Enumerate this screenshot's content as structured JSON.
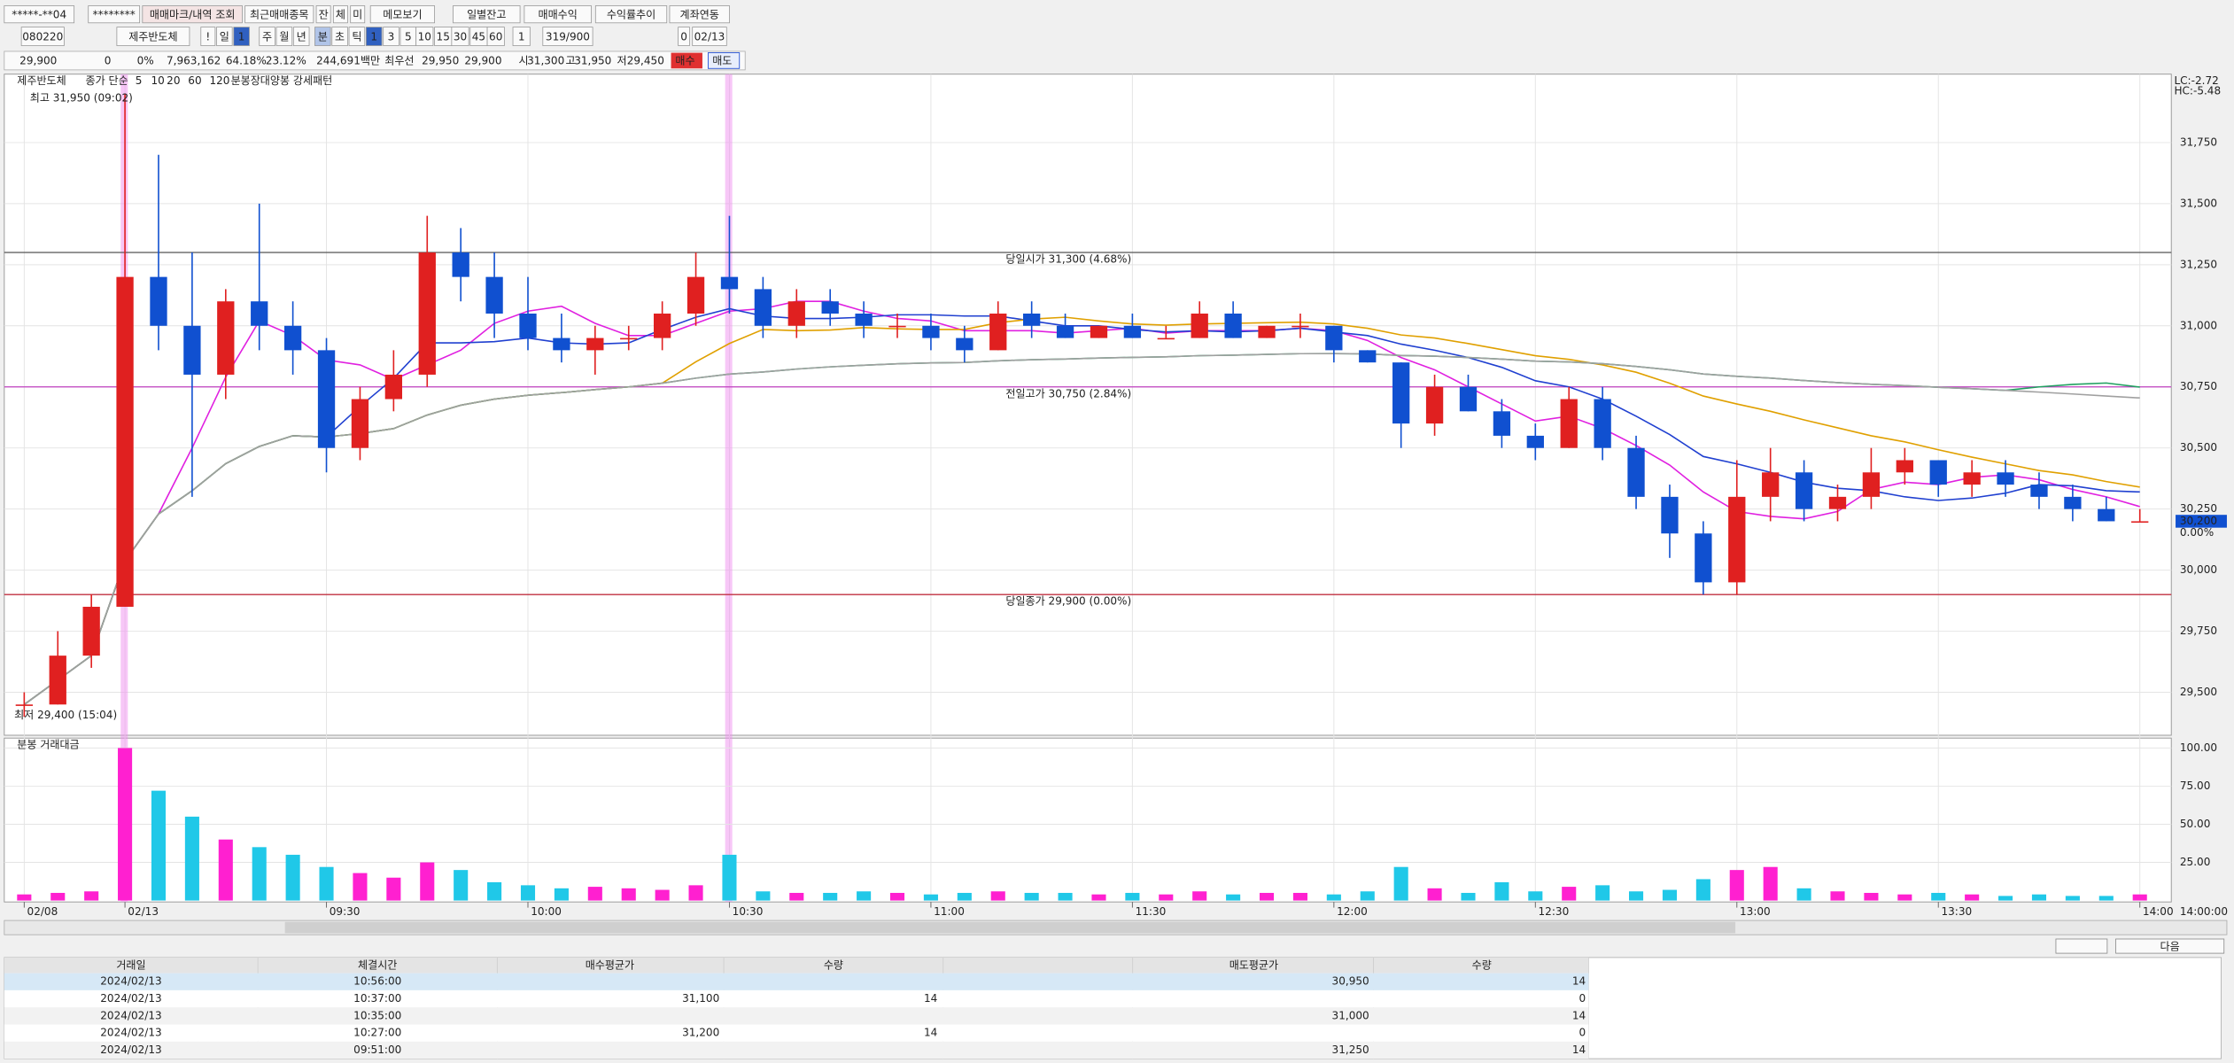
{
  "toolbar": {
    "row1": [
      "*****-**04",
      "********",
      "매매마크/내역 조회",
      "최근매매종목",
      "잔",
      "체",
      "미",
      "메모보기",
      "일별잔고",
      "매매수익",
      "수익률추이",
      "계좌연동"
    ],
    "row2": [
      "080220",
      "제주반도체",
      "!",
      "일",
      "1",
      "주",
      "월",
      "년",
      "분",
      "초",
      "틱",
      "1",
      "3",
      "5",
      "10",
      "15",
      "30",
      "45",
      "60",
      "1",
      "319/900",
      "0",
      "02/13"
    ]
  },
  "quote_bar": [
    "29,900",
    "0",
    "0%",
    "7,963,162",
    "64.18%",
    "23.12%",
    "244,691백만",
    "최우선",
    "29,950",
    "29,900",
    "시",
    "31,300",
    "고",
    "31,950",
    "저",
    "29,450",
    "매수",
    "매도"
  ],
  "chart_data": {
    "type": "candlestick",
    "title": "제주반도체",
    "indicator_label": "종가 단순",
    "ma": [
      {
        "period": 5,
        "color": "#e020e0"
      },
      {
        "period": 10,
        "color": "#2040d0"
      },
      {
        "period": 20,
        "color": "#e0a000"
      },
      {
        "period": 60,
        "color": "#20a060"
      },
      {
        "period": 120,
        "color": "#a0a0a0"
      }
    ],
    "pattern_label": "분봉장대양봉 강세패턴",
    "high_label": "최고 31,950 (09:02)",
    "low_label": "최저 29,400 (15:04)",
    "lc_label": "LC:-2.72",
    "hc_label": "HC:-5.48",
    "last_price": {
      "value": 30200,
      "label": "30,200"
    },
    "last_change": "0.00%",
    "ylim": [
      29330,
      32030
    ],
    "yticks": [
      {
        "value": 29500,
        "label": "29,500"
      },
      {
        "value": 29750,
        "label": "29,750"
      },
      {
        "value": 30000,
        "label": "30,000"
      },
      {
        "value": 30250,
        "label": "30,250"
      },
      {
        "value": 30500,
        "label": "30,500"
      },
      {
        "value": 30750,
        "label": "30,750"
      },
      {
        "value": 31000,
        "label": "31,000"
      },
      {
        "value": 31250,
        "label": "31,250"
      },
      {
        "value": 31500,
        "label": "31,500"
      },
      {
        "value": 31750,
        "label": "31,750"
      }
    ],
    "ref_lines": [
      {
        "label": "당일시가 31,300 (4.68%)",
        "value": 31300,
        "color": "#555555"
      },
      {
        "label": "전일고가 30,750 (2.84%)",
        "value": 30750,
        "color": "#c040c0"
      },
      {
        "label": "당일종가 29,900 (0.00%)",
        "value": 29900,
        "color": "#c03040"
      }
    ],
    "xticks": [
      {
        "value": 0,
        "label": "02/08"
      },
      {
        "value": 3,
        "label": "02/13"
      },
      {
        "value": 9,
        "label": "09:30"
      },
      {
        "value": 15,
        "label": "10:00"
      },
      {
        "value": 21,
        "label": "10:30"
      },
      {
        "value": 27,
        "label": "11:00"
      },
      {
        "value": 33,
        "label": "11:30"
      },
      {
        "value": 39,
        "label": "12:00"
      },
      {
        "value": 45,
        "label": "12:30"
      },
      {
        "value": 51,
        "label": "13:00"
      },
      {
        "value": 57,
        "label": "13:30"
      },
      {
        "value": 63,
        "label": "14:00"
      }
    ],
    "x_end_label": "14:00:00",
    "up_color": "#e02020",
    "down_color": "#1050d0",
    "candles": [
      [
        29450,
        29500,
        29400,
        29450
      ],
      [
        29450,
        29750,
        29450,
        29650
      ],
      [
        29650,
        29900,
        29600,
        29850
      ],
      [
        29850,
        31950,
        29850,
        31200
      ],
      [
        31200,
        31700,
        30900,
        31000
      ],
      [
        31000,
        31300,
        30300,
        30800
      ],
      [
        30800,
        31150,
        30700,
        31100
      ],
      [
        31100,
        31500,
        30900,
        31000
      ],
      [
        31000,
        31100,
        30800,
        30900
      ],
      [
        30900,
        30950,
        30400,
        30500
      ],
      [
        30500,
        30750,
        30450,
        30700
      ],
      [
        30700,
        30900,
        30650,
        30800
      ],
      [
        30800,
        31450,
        30750,
        31300
      ],
      [
        31300,
        31400,
        31100,
        31200
      ],
      [
        31200,
        31300,
        30950,
        31050
      ],
      [
        31050,
        31200,
        30900,
        30950
      ],
      [
        30950,
        31050,
        30850,
        30900
      ],
      [
        30900,
        31000,
        30800,
        30950
      ],
      [
        30950,
        31000,
        30900,
        30950
      ],
      [
        30950,
        31100,
        30900,
        31050
      ],
      [
        31050,
        31300,
        31000,
        31200
      ],
      [
        31200,
        31450,
        31050,
        31150
      ],
      [
        31150,
        31200,
        30950,
        31000
      ],
      [
        31000,
        31150,
        30950,
        31100
      ],
      [
        31100,
        31150,
        31000,
        31050
      ],
      [
        31050,
        31100,
        30950,
        31000
      ],
      [
        31000,
        31050,
        30950,
        31000
      ],
      [
        31000,
        31050,
        30900,
        30950
      ],
      [
        30950,
        31000,
        30850,
        30900
      ],
      [
        30900,
        31100,
        30900,
        31050
      ],
      [
        31050,
        31100,
        30950,
        31000
      ],
      [
        31000,
        31050,
        30950,
        30950
      ],
      [
        30950,
        31000,
        30950,
        31000
      ],
      [
        31000,
        31050,
        30950,
        30950
      ],
      [
        30950,
        31000,
        30950,
        30950
      ],
      [
        30950,
        31100,
        30950,
        31050
      ],
      [
        31050,
        31100,
        30950,
        30950
      ],
      [
        30950,
        31000,
        30950,
        31000
      ],
      [
        31000,
        31050,
        30950,
        31000
      ],
      [
        31000,
        31000,
        30850,
        30900
      ],
      [
        30900,
        30900,
        30850,
        30850
      ],
      [
        30850,
        30850,
        30500,
        30600
      ],
      [
        30600,
        30800,
        30550,
        30750
      ],
      [
        30750,
        30800,
        30650,
        30650
      ],
      [
        30650,
        30700,
        30500,
        30550
      ],
      [
        30550,
        30600,
        30450,
        30500
      ],
      [
        30500,
        30750,
        30500,
        30700
      ],
      [
        30700,
        30750,
        30450,
        30500
      ],
      [
        30500,
        30550,
        30250,
        30300
      ],
      [
        30300,
        30350,
        30050,
        30150
      ],
      [
        30150,
        30200,
        29900,
        29950
      ],
      [
        29950,
        30450,
        29900,
        30300
      ],
      [
        30300,
        30500,
        30200,
        30400
      ],
      [
        30400,
        30450,
        30200,
        30250
      ],
      [
        30250,
        30350,
        30200,
        30300
      ],
      [
        30300,
        30500,
        30250,
        30400
      ],
      [
        30400,
        30500,
        30350,
        30450
      ],
      [
        30450,
        30450,
        30300,
        30350
      ],
      [
        30350,
        30450,
        30300,
        30400
      ],
      [
        30400,
        30450,
        30300,
        30350
      ],
      [
        30350,
        30400,
        30250,
        30300
      ],
      [
        30300,
        30350,
        30200,
        30250
      ],
      [
        30250,
        30300,
        30200,
        30200
      ],
      [
        30200,
        30250,
        30200,
        30200
      ]
    ],
    "volume": {
      "title": "분봉 거래대금",
      "ylim": [
        0,
        106.5
      ],
      "yticks": [
        {
          "value": 25,
          "label": "25.00"
        },
        {
          "value": 50,
          "label": "50.00"
        },
        {
          "value": 75,
          "label": "75.00"
        },
        {
          "value": 100,
          "label": "100.00"
        }
      ],
      "up_color": "#ff20d0",
      "down_color": "#20c8e8",
      "values": [
        4,
        5,
        6,
        100,
        72,
        55,
        40,
        35,
        30,
        22,
        18,
        15,
        25,
        20,
        12,
        10,
        8,
        9,
        8,
        7,
        10,
        30,
        6,
        5,
        5,
        6,
        5,
        4,
        5,
        6,
        5,
        5,
        4,
        5,
        4,
        6,
        4,
        5,
        5,
        4,
        6,
        22,
        8,
        5,
        12,
        6,
        9,
        10,
        6,
        7,
        14,
        20,
        22,
        8,
        6,
        5,
        4,
        5,
        4,
        3,
        4,
        3,
        3,
        4
      ]
    }
  },
  "next_button": "다음",
  "table": {
    "headers": {
      "date": "거래일",
      "time": "체결시간",
      "buy_price": "매수평균가",
      "buy_qty": "수량",
      "sell_price": "매도평균가",
      "sell_qty": "수량"
    },
    "rows": [
      {
        "date": "2024/02/13",
        "time": "10:56:00",
        "sell_price": "30,950",
        "sell_qty": "14"
      },
      {
        "date": "2024/02/13",
        "time": "10:37:00",
        "buy_price": "31,100",
        "buy_qty": "14",
        "sell_qty": "0"
      },
      {
        "date": "2024/02/13",
        "time": "10:35:00",
        "sell_price": "31,000",
        "sell_qty": "14"
      },
      {
        "date": "2024/02/13",
        "time": "10:27:00",
        "buy_price": "31,200",
        "buy_qty": "14",
        "sell_qty": "0"
      },
      {
        "date": "2024/02/13",
        "time": "09:51:00",
        "sell_price": "31,250",
        "sell_qty": "14"
      }
    ]
  }
}
